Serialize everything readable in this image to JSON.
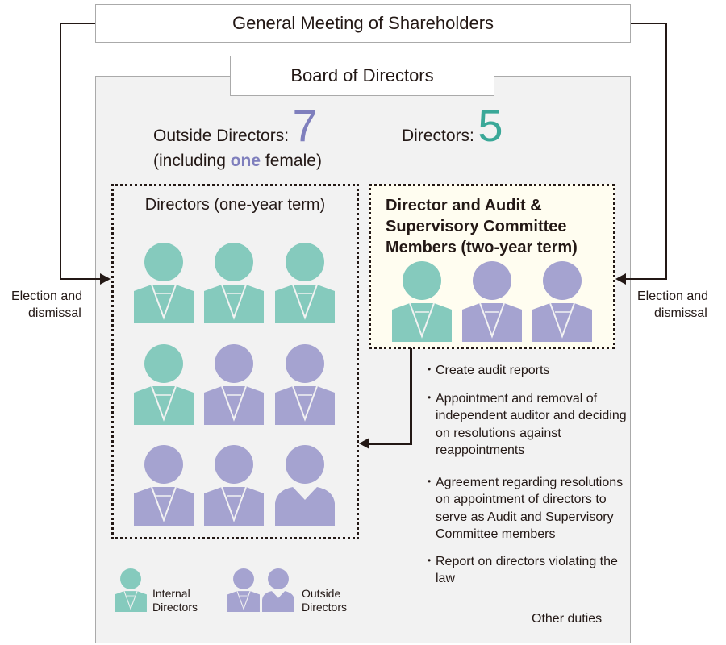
{
  "top": {
    "title": "General Meeting of Shareholders"
  },
  "board": {
    "title": "Board of Directors"
  },
  "election": {
    "left_line1": "Election and",
    "left_line2": "dismissal",
    "right_line1": "Election and",
    "right_line2": "dismissal"
  },
  "summary": {
    "outside_label": "Outside Directors:",
    "outside_count": "7",
    "female_prefix": "(including ",
    "female_count": "one",
    "female_suffix": " female)",
    "directors_label": "Directors:",
    "directors_count": "5"
  },
  "left_group": {
    "title": "Directors (one-year term)",
    "members": [
      "internal",
      "internal",
      "internal",
      "internal",
      "outside",
      "outside",
      "outside",
      "outside",
      "outside-female"
    ]
  },
  "right_group": {
    "title_lines": [
      "Director and Audit &",
      "Supervisory Committee",
      "Members (two-year term)"
    ],
    "members": [
      "internal",
      "outside",
      "outside"
    ]
  },
  "duties": [
    "Create audit reports",
    "Appointment and removal of independent auditor and deciding on resolutions against reappointments",
    "Agreement regarding resolutions on appointment of directors to serve as Audit and Supervisory Committee members",
    "Report on directors violating the law"
  ],
  "other_duties": "Other duties",
  "legend": {
    "internal_line1": "Internal",
    "internal_line2": "Directors",
    "outside_line1": "Outside",
    "outside_line2": "Directors"
  },
  "colors": {
    "internal": "#85cabd",
    "outside": "#a5a3d0",
    "outside_accent": "#7f7fbd",
    "directors_accent": "#3aa898"
  }
}
